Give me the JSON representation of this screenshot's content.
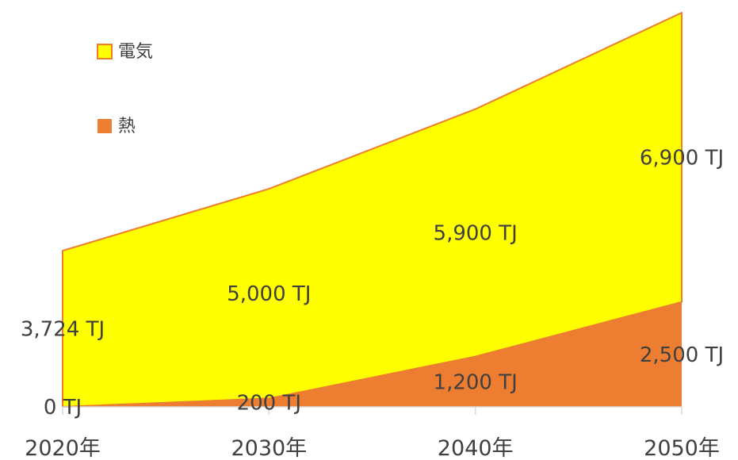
{
  "chart_data": {
    "type": "area",
    "stacked": true,
    "categories": [
      "2020年",
      "2030年",
      "2040年",
      "2050年"
    ],
    "series": [
      {
        "name": "熱",
        "values": [
          0,
          200,
          1200,
          2500
        ],
        "labels": [
          "0 TJ",
          "200 TJ",
          "1,200 TJ",
          "2,500 TJ"
        ],
        "color": "#ED7D31"
      },
      {
        "name": "電気",
        "values": [
          3724,
          5000,
          5900,
          6900
        ],
        "labels": [
          "3,724 TJ",
          "5,000 TJ",
          "5,900 TJ",
          "6,900 TJ"
        ],
        "color": "#FFFF00",
        "outline": "#ED7D31"
      }
    ],
    "ylim": [
      0,
      9400
    ],
    "grid": false,
    "legend_position": "top-left",
    "legend_order": [
      "電気",
      "熱"
    ],
    "axis_color": "#D9D9D9"
  }
}
